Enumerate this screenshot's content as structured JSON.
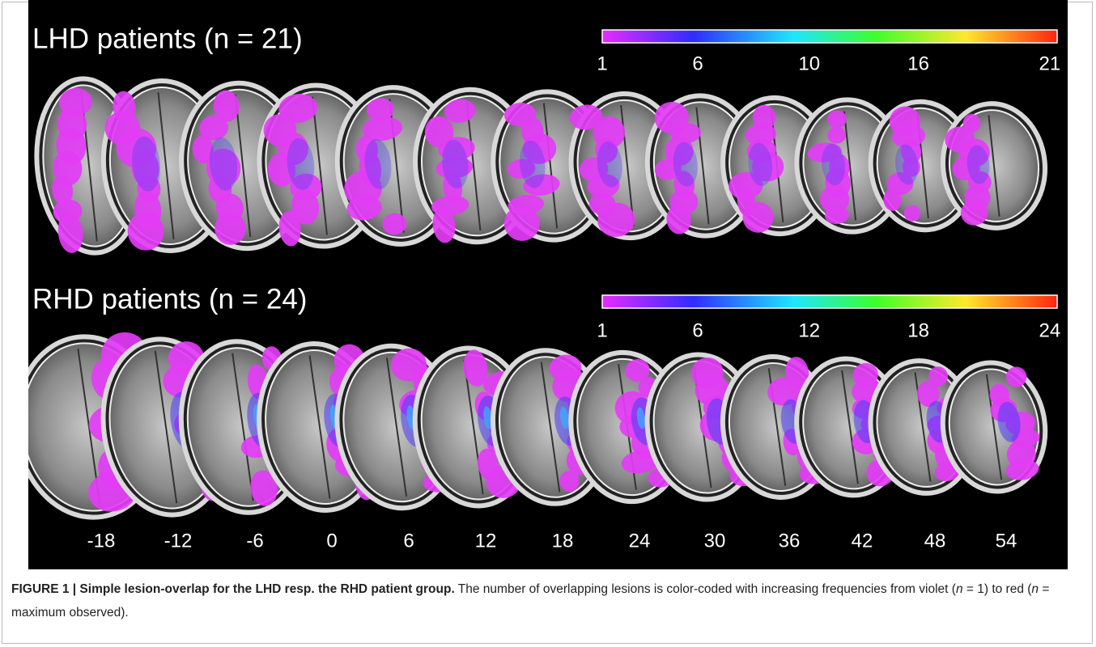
{
  "panels": [
    {
      "title": "LHD patients (n = 21)",
      "colorbar_labels": [
        1,
        6,
        10,
        16,
        21
      ]
    },
    {
      "title": "RHD patients (n = 24)",
      "colorbar_labels": [
        1,
        6,
        12,
        18,
        24
      ]
    }
  ],
  "slice_labels": [
    -18,
    -12,
    -6,
    0,
    6,
    12,
    18,
    24,
    30,
    36,
    42,
    48,
    54
  ],
  "caption": {
    "label": "FIGURE 1 | Simple lesion-overlap for the LHD resp. the RHD patient group.",
    "text": [
      " The number of overlapping lesions is color-coded with increasing frequencies from violet (",
      "n",
      " = 1) to red (",
      "n",
      " = maximum observed)."
    ]
  }
}
